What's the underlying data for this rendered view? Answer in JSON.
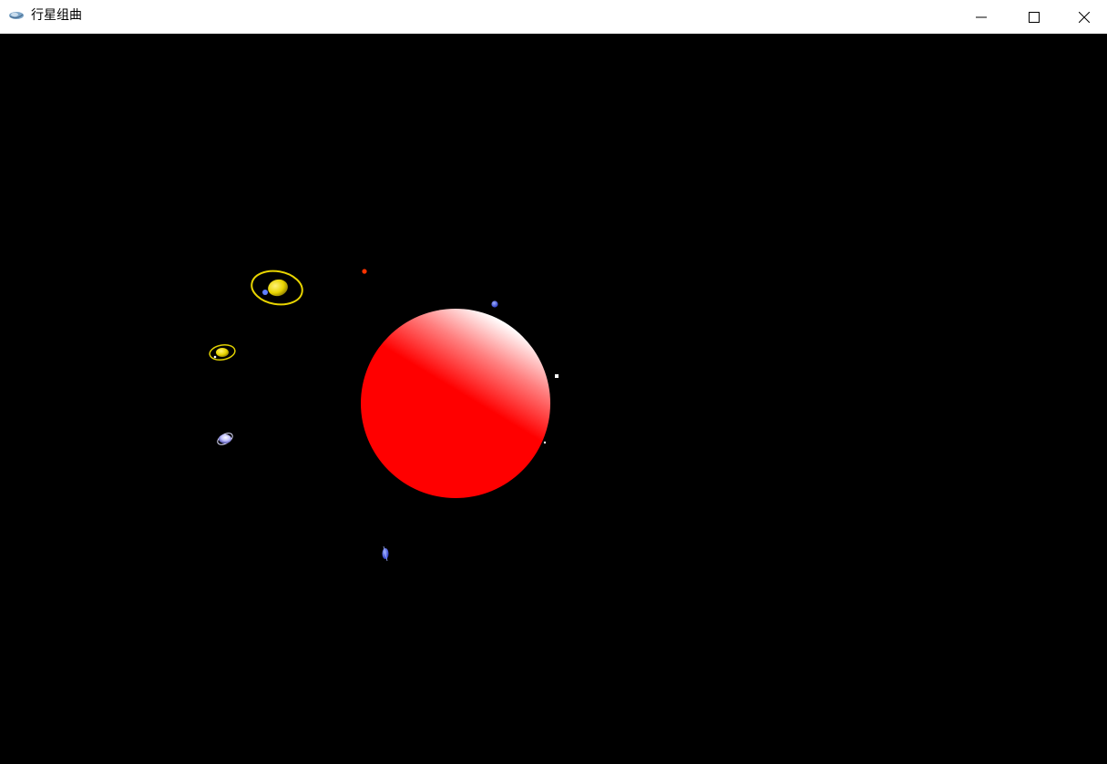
{
  "window": {
    "title": "行星组曲",
    "icon": "app-icon",
    "controls": [
      "minimize-icon",
      "maximize-icon",
      "close-icon"
    ]
  },
  "scene": {
    "background": "#000000",
    "sun_color": "#ff0000",
    "bodies": [
      {
        "name": "sun",
        "color": "#ff0000"
      },
      {
        "name": "ringed-planet-large",
        "color": "#e8d400",
        "ring_color": "#e8d400"
      },
      {
        "name": "ringed-planet-small",
        "color": "#e0d000",
        "ring_color": "#e0d000"
      },
      {
        "name": "ringed-planet-blue",
        "color": "#b0b0ff",
        "ring_color": "#ffffff"
      },
      {
        "name": "red-planet",
        "color": "#ff3300"
      },
      {
        "name": "blue-planet",
        "color": "#4060ff"
      },
      {
        "name": "blue-planet-bottom",
        "color": "#3050ff"
      },
      {
        "name": "white-star",
        "color": "#ffffff"
      }
    ]
  }
}
